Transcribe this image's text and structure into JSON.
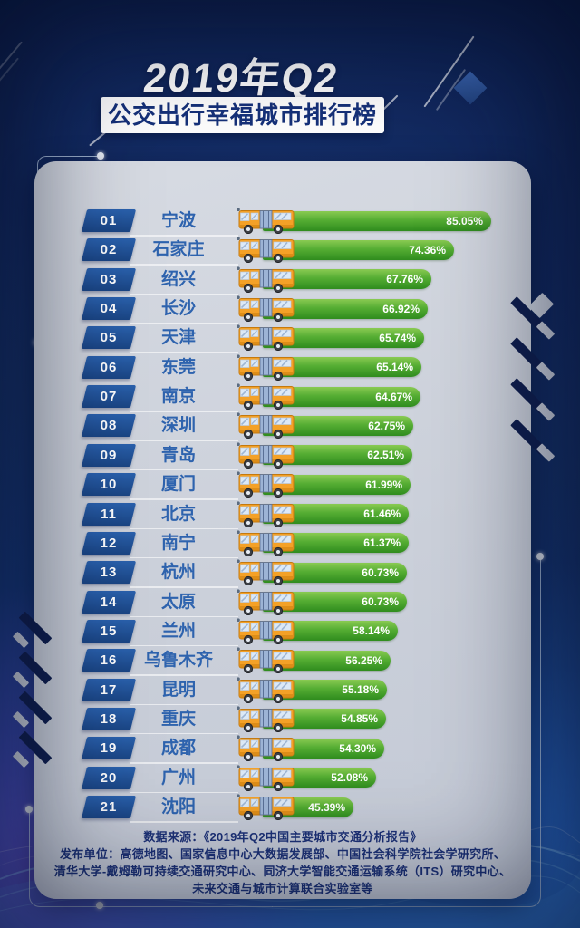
{
  "header": {
    "quarter": "2019年Q2",
    "banner": "公交出行幸福城市排行榜"
  },
  "chart_data": {
    "type": "bar",
    "orientation": "horizontal",
    "title": "2019年Q2 公交出行幸福城市排行榜",
    "unit": "%",
    "xlim": [
      0,
      100
    ],
    "ranks": [
      "01",
      "02",
      "03",
      "04",
      "05",
      "06",
      "07",
      "08",
      "09",
      "10",
      "11",
      "12",
      "13",
      "14",
      "15",
      "16",
      "17",
      "18",
      "19",
      "20",
      "21"
    ],
    "categories": [
      "宁波",
      "石家庄",
      "绍兴",
      "长沙",
      "天津",
      "东莞",
      "南京",
      "深圳",
      "青岛",
      "厦门",
      "北京",
      "南宁",
      "杭州",
      "太原",
      "兰州",
      "乌鲁木齐",
      "昆明",
      "重庆",
      "成都",
      "广州",
      "沈阳"
    ],
    "values": [
      85.05,
      74.36,
      67.76,
      66.92,
      65.74,
      65.14,
      64.67,
      62.75,
      62.51,
      61.99,
      61.46,
      61.37,
      60.73,
      60.73,
      58.14,
      56.25,
      55.18,
      54.85,
      54.3,
      52.08,
      45.39
    ],
    "value_labels": [
      "85.05%",
      "74.36%",
      "67.76%",
      "66.92%",
      "65.74%",
      "65.14%",
      "64.67%",
      "62.75%",
      "62.51%",
      "61.99%",
      "61.46%",
      "61.37%",
      "60.73%",
      "60.73%",
      "58.14%",
      "56.25%",
      "55.18%",
      "54.85%",
      "54.30%",
      "52.08%",
      "45.39%"
    ],
    "bar_color_top": "#8aca52",
    "bar_color_bottom": "#2f8c1e",
    "legend": "none",
    "grid": "off"
  },
  "footer": {
    "source_line": "数据来源：《2019年Q2中国主要城市交通分析报告》",
    "publisher_line1": "发布单位：高德地图、国家信息中心大数据发展部、中国社会科学院社会学研究所、",
    "publisher_line2": "清华大学-戴姆勒可持续交通研究中心、同济大学智能交通运输系统（ITS）研究中心、",
    "publisher_line3": "未来交通与城市计算联合实验室等"
  },
  "colors": {
    "background_navy": "#0f2458",
    "panel_gray": "#cbd0da",
    "badge_blue": "#1f5096",
    "city_text_blue": "#2e63ae",
    "bar_green": "#4aa32a",
    "footer_navy": "#1d3277",
    "accent_purple": "#7d41be",
    "accent_cyan": "#96d7ff"
  }
}
